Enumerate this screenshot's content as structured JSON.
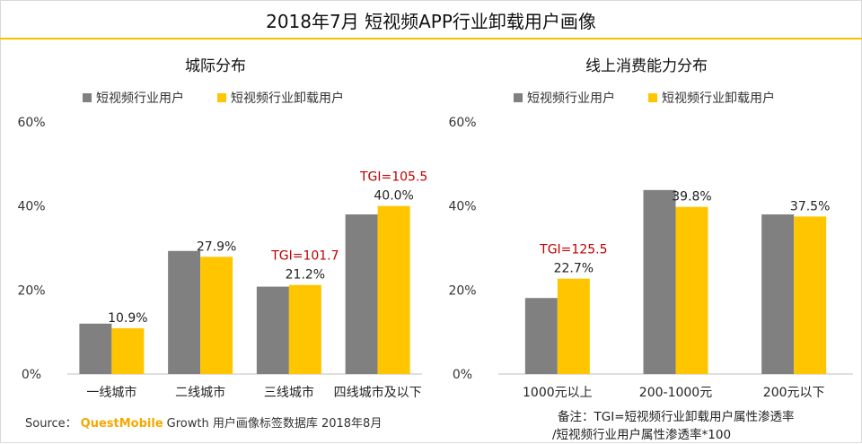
{
  "title": "2018年7月 短视频APP行业卸载用户画像",
  "colors": {
    "series1": "#808080",
    "series2": "#ffc600",
    "tgi": "#c00000",
    "accent": "#f5c400"
  },
  "chart_data": [
    {
      "type": "bar",
      "title": "城际分布",
      "categories": [
        "一线城市",
        "二线城市",
        "三线城市",
        "四线城市及以下"
      ],
      "series": [
        {
          "name": "短视频行业用户",
          "values": [
            12.0,
            29.3,
            20.8,
            38.0
          ]
        },
        {
          "name": "短视频行业卸载用户",
          "values": [
            10.9,
            27.9,
            21.2,
            40.0
          ],
          "labels": [
            "10.9%",
            "27.9%",
            "21.2%",
            "40.0%"
          ]
        }
      ],
      "annotations": [
        {
          "category": "三线城市",
          "text": "TGI=101.7"
        },
        {
          "category": "四线城市及以下",
          "text": "TGI=105.5"
        }
      ],
      "yticks": [
        "0%",
        "20%",
        "40%",
        "60%"
      ],
      "ylim": [
        0,
        60
      ],
      "legend": "top-left"
    },
    {
      "type": "bar",
      "title": "线上消费能力分布",
      "categories": [
        "1000元以上",
        "200-1000元",
        "200元以下"
      ],
      "series": [
        {
          "name": "短视频行业用户",
          "values": [
            18.1,
            43.8,
            38.0
          ]
        },
        {
          "name": "短视频行业卸载用户",
          "values": [
            22.7,
            39.8,
            37.5
          ],
          "labels": [
            "22.7%",
            "39.8%",
            "37.5%"
          ]
        }
      ],
      "annotations": [
        {
          "category": "1000元以上",
          "text": "TGI=125.5"
        }
      ],
      "yticks": [
        "0%",
        "20%",
        "40%",
        "60%"
      ],
      "ylim": [
        0,
        60
      ],
      "legend": "top-left"
    }
  ],
  "footer": {
    "source_label": "Source：",
    "brand": "QuestMobile",
    "text": "Growth 用户画像标签数据库 2018年8月"
  },
  "note": {
    "line1": "备注：TGI=短视频行业卸载用户属性渗透率",
    "line2": "/短视频行业用户属性渗透率*100"
  }
}
